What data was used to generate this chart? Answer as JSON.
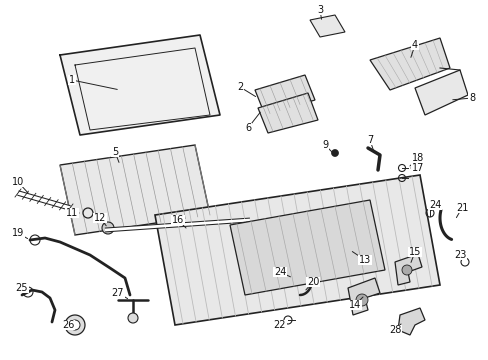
{
  "bg_color": "#ffffff",
  "fig_width": 4.89,
  "fig_height": 3.6,
  "dpi": 100,
  "line_color": "#222222",
  "label_fontsize": 7.0
}
